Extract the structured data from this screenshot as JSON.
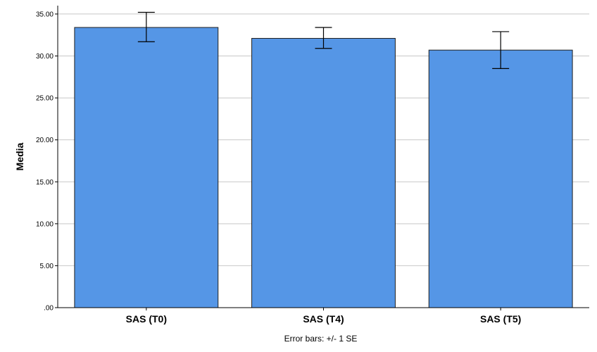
{
  "chart_data": {
    "type": "bar",
    "categories": [
      "SAS (T0)",
      "SAS (T4)",
      "SAS (T5)"
    ],
    "values": [
      33.4,
      32.1,
      30.7
    ],
    "error_low": [
      31.7,
      30.9,
      28.5
    ],
    "error_high": [
      35.2,
      33.4,
      32.9
    ],
    "ylabel": "Media",
    "xlabel": "",
    "ylim": [
      0,
      36
    ],
    "yticks": [
      0,
      5,
      10,
      15,
      20,
      25,
      30,
      35
    ],
    "ytick_labels": [
      ".00",
      "5.00",
      "10.00",
      "15.00",
      "20.00",
      "25.00",
      "30.00",
      "35.00"
    ],
    "grid": true,
    "bar_color": "#5596E6",
    "bar_edge_color": "#1f1f1f",
    "note": "Error bars: +/- 1 SE"
  }
}
